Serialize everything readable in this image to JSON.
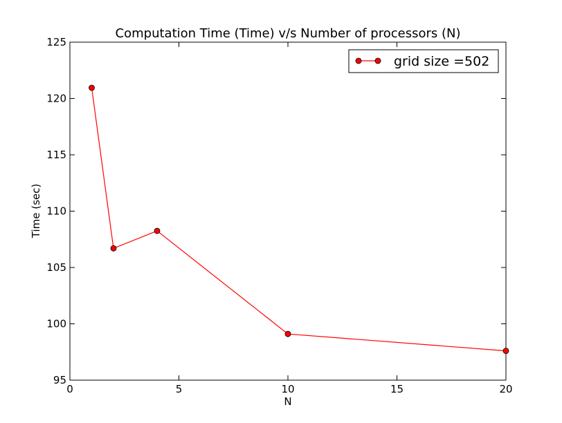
{
  "chart_data": {
    "type": "line",
    "title": "Computation Time (Time) v/s Number of processors (N)",
    "xlabel": "N",
    "ylabel": "Time (sec)",
    "xlim": [
      0,
      20
    ],
    "ylim": [
      95,
      125
    ],
    "xticks": [
      0,
      5,
      10,
      15,
      20
    ],
    "yticks": [
      95,
      100,
      105,
      110,
      115,
      120,
      125
    ],
    "grid": false,
    "legend_position": "top-right",
    "series": [
      {
        "name": "grid size =502",
        "color": "#ff0000",
        "marker": "circle",
        "x": [
          1,
          2,
          4,
          10,
          20
        ],
        "y": [
          120.95,
          106.7,
          108.25,
          99.1,
          97.6
        ]
      }
    ]
  }
}
